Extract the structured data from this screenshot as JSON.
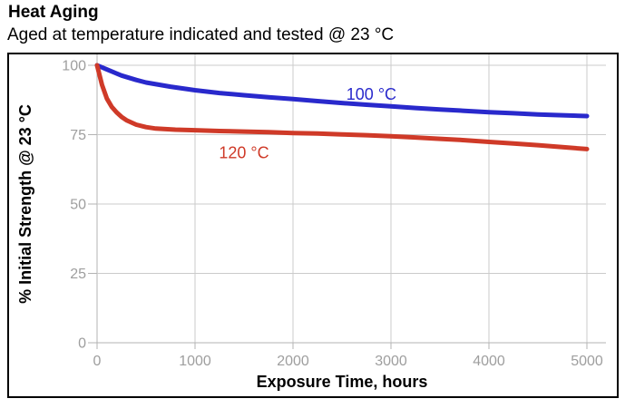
{
  "title": "Heat Aging",
  "subtitle": "Aged at temperature indicated and tested @ 23 °C",
  "colors": {
    "background": "#ffffff",
    "frame_border": "#000000",
    "grid": "#cbcbcb",
    "axis_line": "#b3b3b3",
    "tick_label": "#9e9e9e",
    "text": "#000000",
    "series_100c": "#2929cc",
    "series_120c": "#cf3a28"
  },
  "chart_data": {
    "type": "line",
    "title": "Heat Aging",
    "subtitle": "Aged at temperature indicated and tested @ 23 °C",
    "xlabel": "Exposure Time, hours",
    "ylabel": "% Initial Strength @ 23 °C",
    "xlim": [
      0,
      5000
    ],
    "ylim": [
      0,
      100
    ],
    "x_ticks": [
      0,
      1000,
      2000,
      3000,
      4000,
      5000
    ],
    "y_ticks": [
      0,
      25,
      50,
      75,
      100
    ],
    "grid": true,
    "legend": "inline-labels",
    "series": [
      {
        "name": "100 °C",
        "color": "#2929cc",
        "label_anchor": {
          "x": 2800,
          "y": 89.5
        },
        "points": [
          [
            0,
            100
          ],
          [
            100,
            98.5
          ],
          [
            250,
            96.3
          ],
          [
            400,
            94.7
          ],
          [
            500,
            93.8
          ],
          [
            750,
            92.3
          ],
          [
            1000,
            91.0
          ],
          [
            1250,
            90.0
          ],
          [
            1500,
            89.2
          ],
          [
            1750,
            88.5
          ],
          [
            2000,
            87.8
          ],
          [
            2250,
            87.1
          ],
          [
            2500,
            86.4
          ],
          [
            2750,
            85.8
          ],
          [
            3000,
            85.2
          ],
          [
            3250,
            84.6
          ],
          [
            3500,
            84.1
          ],
          [
            3750,
            83.6
          ],
          [
            4000,
            83.1
          ],
          [
            4250,
            82.7
          ],
          [
            4500,
            82.3
          ],
          [
            4750,
            82.0
          ],
          [
            5000,
            81.7
          ]
        ]
      },
      {
        "name": "120 °C",
        "color": "#cf3a28",
        "label_anchor": {
          "x": 1500,
          "y": 68.5
        },
        "points": [
          [
            0,
            100
          ],
          [
            50,
            93.0
          ],
          [
            100,
            88.0
          ],
          [
            150,
            85.0
          ],
          [
            200,
            83.0
          ],
          [
            250,
            81.4
          ],
          [
            300,
            80.2
          ],
          [
            400,
            78.6
          ],
          [
            500,
            77.7
          ],
          [
            600,
            77.2
          ],
          [
            800,
            76.8
          ],
          [
            1000,
            76.6
          ],
          [
            1250,
            76.3
          ],
          [
            1500,
            76.1
          ],
          [
            1750,
            75.9
          ],
          [
            2000,
            75.6
          ],
          [
            2250,
            75.4
          ],
          [
            2500,
            75.1
          ],
          [
            2750,
            74.8
          ],
          [
            3000,
            74.4
          ],
          [
            3250,
            74.0
          ],
          [
            3500,
            73.5
          ],
          [
            3750,
            73.0
          ],
          [
            4000,
            72.4
          ],
          [
            4250,
            71.8
          ],
          [
            4500,
            71.2
          ],
          [
            4750,
            70.5
          ],
          [
            5000,
            69.8
          ]
        ]
      }
    ]
  }
}
